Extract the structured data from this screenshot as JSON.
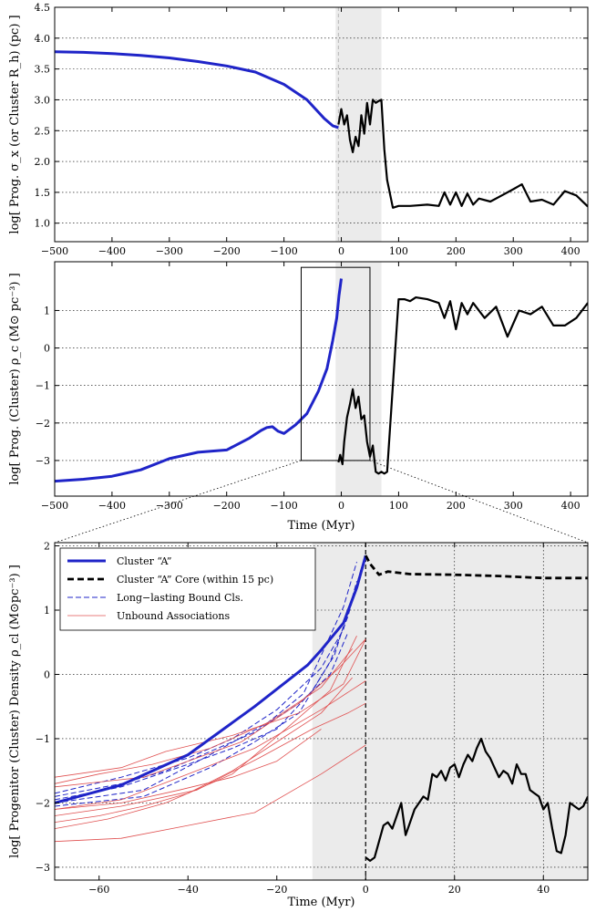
{
  "chart_data": [
    {
      "id": "top",
      "type": "line",
      "ylabel": "log[ Prog. σ_x (or Cluster R_h) (pc) ]",
      "xlabel": "",
      "xlim": [
        -500,
        430
      ],
      "ylim": [
        0.7,
        4.5
      ],
      "xticks": [
        -500,
        -400,
        -300,
        -200,
        -100,
        0,
        100,
        200,
        300,
        400
      ],
      "yticks": [
        1.0,
        1.5,
        2.0,
        2.5,
        3.0,
        3.5,
        4.0,
        4.5
      ],
      "ytick_labels": [
        "1.0",
        "1.5",
        "2.0",
        "2.5",
        "3.0",
        "3.5",
        "4.0",
        "4.5"
      ],
      "grid_y": true,
      "shade": [
        -10,
        70
      ],
      "vline": -5,
      "series": [
        {
          "color": "#1f24c8",
          "style": "solid",
          "width": 3,
          "x": [
            -500,
            -450,
            -400,
            -350,
            -300,
            -250,
            -200,
            -150,
            -100,
            -60,
            -30,
            -15,
            -5
          ],
          "y": [
            3.78,
            3.77,
            3.75,
            3.72,
            3.68,
            3.62,
            3.55,
            3.45,
            3.25,
            3.0,
            2.7,
            2.58,
            2.55
          ]
        },
        {
          "color": "#000000",
          "style": "solid",
          "width": 2.2,
          "x": [
            -5,
            0,
            5,
            10,
            15,
            20,
            25,
            30,
            35,
            40,
            45,
            50,
            55,
            60,
            65,
            70,
            75,
            80,
            90,
            100,
            120,
            150,
            170,
            180,
            190,
            200,
            210,
            220,
            230,
            240,
            260,
            280,
            300,
            315,
            330,
            350,
            370,
            390,
            410,
            430
          ],
          "y": [
            2.6,
            2.85,
            2.6,
            2.75,
            2.35,
            2.15,
            2.4,
            2.25,
            2.75,
            2.45,
            2.95,
            2.6,
            3.0,
            2.95,
            2.98,
            3.0,
            2.2,
            1.7,
            1.25,
            1.28,
            1.28,
            1.3,
            1.28,
            1.5,
            1.3,
            1.5,
            1.28,
            1.48,
            1.3,
            1.4,
            1.35,
            1.45,
            1.55,
            1.63,
            1.35,
            1.38,
            1.3,
            1.52,
            1.45,
            1.27
          ]
        }
      ]
    },
    {
      "id": "middle",
      "type": "line",
      "ylabel": "log[ Prog. (Cluster) ρ_c (M⊙ pc⁻³) ]",
      "xlabel": "Time (Myr)",
      "xlim": [
        -500,
        430
      ],
      "ylim": [
        -3.95,
        2.3
      ],
      "xticks": [
        -500,
        -400,
        -300,
        -200,
        -100,
        0,
        100,
        200,
        300,
        400
      ],
      "yticks": [
        -3,
        -2,
        -1,
        0,
        1
      ],
      "ytick_labels": [
        "-3",
        "-2",
        "-1",
        "0",
        "1"
      ],
      "grid_y": true,
      "shade": [
        -10,
        70
      ],
      "zoom_box": {
        "x": [
          -70,
          50
        ],
        "y": [
          -3.0,
          2.15
        ]
      },
      "series": [
        {
          "color": "#1f24c8",
          "style": "solid",
          "width": 3,
          "x": [
            -500,
            -450,
            -400,
            -350,
            -300,
            -250,
            -200,
            -160,
            -140,
            -130,
            -120,
            -110,
            -100,
            -80,
            -60,
            -40,
            -25,
            -15,
            -8,
            -4,
            0
          ],
          "y": [
            -3.55,
            -3.5,
            -3.42,
            -3.25,
            -2.95,
            -2.78,
            -2.72,
            -2.4,
            -2.2,
            -2.12,
            -2.1,
            -2.22,
            -2.28,
            -2.05,
            -1.75,
            -1.15,
            -0.55,
            0.2,
            0.8,
            1.4,
            1.85
          ]
        },
        {
          "color": "#000000",
          "style": "solid",
          "width": 2.2,
          "x": [
            -5,
            -2,
            2,
            5,
            10,
            15,
            20,
            25,
            30,
            35,
            40,
            45,
            50,
            55,
            60,
            65,
            70,
            75,
            80,
            90,
            100,
            110,
            120,
            130,
            150,
            170,
            180,
            190,
            200,
            210,
            220,
            230,
            250,
            270,
            290,
            310,
            330,
            350,
            370,
            390,
            410,
            430
          ],
          "y": [
            -3.05,
            -2.85,
            -3.1,
            -2.5,
            -1.85,
            -1.5,
            -1.1,
            -1.6,
            -1.3,
            -1.9,
            -1.8,
            -2.5,
            -2.9,
            -2.6,
            -3.3,
            -3.35,
            -3.3,
            -3.35,
            -3.3,
            -1.0,
            1.3,
            1.3,
            1.25,
            1.35,
            1.3,
            1.2,
            0.8,
            1.25,
            0.5,
            1.2,
            0.9,
            1.2,
            0.8,
            1.1,
            0.3,
            1.0,
            0.9,
            1.1,
            0.6,
            0.6,
            0.8,
            1.2
          ]
        }
      ]
    },
    {
      "id": "bottom",
      "type": "line",
      "ylabel": "log[ Progenitor (Cluster) Density ρ_cl (M⊙pc⁻³) ]",
      "xlabel": "Time (Myr)",
      "xlim": [
        -70,
        50
      ],
      "ylim": [
        -3.2,
        2.05
      ],
      "xticks": [
        -60,
        -40,
        -20,
        0,
        20,
        40
      ],
      "yticks": [
        -3,
        -2,
        -1,
        0,
        1,
        2
      ],
      "ytick_labels": [
        "-3",
        "-2",
        "-1",
        "0",
        "1",
        "2"
      ],
      "grid_x": [
        20,
        40
      ],
      "grid_y": true,
      "shade": [
        -12,
        50
      ],
      "vline": 0,
      "legend_position": "top-left",
      "legend": [
        {
          "label": "Cluster “A”",
          "color": "#1f24c8",
          "style": "solid",
          "width": 3
        },
        {
          "label": "Cluster “A” Core (within 15 pc)",
          "color": "#000000",
          "style": "dashed",
          "width": 2.8
        },
        {
          "label": "Long−lasting Bound Cls.",
          "color": "#1f24c8",
          "style": "dashed",
          "width": 1
        },
        {
          "label": "Unbound Associations",
          "color": "#e05050",
          "style": "solid",
          "width": 0.8
        }
      ],
      "series": [
        {
          "name": "Cluster “A”",
          "color": "#1f24c8",
          "style": "solid",
          "width": 3,
          "x": [
            -70,
            -55,
            -40,
            -25,
            -13,
            -10,
            -5,
            -2,
            0
          ],
          "y": [
            -2.0,
            -1.72,
            -1.25,
            -0.5,
            0.15,
            0.38,
            0.8,
            1.35,
            1.85
          ]
        },
        {
          "name": "Cluster “A” Core (within 15 pc)",
          "color": "#000000",
          "style": "dashed",
          "width": 2.8,
          "x": [
            0,
            1,
            3,
            5,
            10,
            20,
            30,
            40,
            50
          ],
          "y": [
            1.85,
            1.72,
            1.55,
            1.6,
            1.56,
            1.55,
            1.53,
            1.5,
            1.5
          ]
        },
        {
          "color": "#000000",
          "style": "solid",
          "width": 2.2,
          "x": [
            0,
            1,
            2,
            3,
            4,
            5,
            6,
            7,
            8,
            9,
            10,
            11,
            12,
            13,
            14,
            15,
            16,
            17,
            18,
            19,
            20,
            21,
            22,
            23,
            24,
            25,
            26,
            27,
            28,
            29,
            30,
            31,
            32,
            33,
            34,
            35,
            36,
            37,
            38,
            39,
            40,
            41,
            42,
            43,
            44,
            45,
            46,
            47,
            48,
            49,
            50
          ],
          "y": [
            -2.85,
            -2.9,
            -2.85,
            -2.6,
            -2.35,
            -2.3,
            -2.4,
            -2.2,
            -2.0,
            -2.5,
            -2.3,
            -2.1,
            -2.0,
            -1.9,
            -1.95,
            -1.55,
            -1.6,
            -1.5,
            -1.65,
            -1.45,
            -1.4,
            -1.6,
            -1.4,
            -1.25,
            -1.35,
            -1.15,
            -1.0,
            -1.2,
            -1.3,
            -1.45,
            -1.6,
            -1.5,
            -1.55,
            -1.7,
            -1.4,
            -1.55,
            -1.55,
            -1.8,
            -1.85,
            -1.9,
            -2.1,
            -2.0,
            -2.4,
            -2.75,
            -2.78,
            -2.5,
            -2.0,
            -2.05,
            -2.1,
            -2.05,
            -1.9
          ]
        },
        {
          "color": "#1f24c8",
          "style": "dashed",
          "width": 1,
          "x": [
            -70,
            -55,
            -40,
            -30,
            -20,
            -10,
            -5,
            -2
          ],
          "y": [
            -1.85,
            -1.6,
            -1.3,
            -1.0,
            -0.55,
            0.1,
            0.7,
            1.45
          ]
        },
        {
          "color": "#1f24c8",
          "style": "dashed",
          "width": 1,
          "x": [
            -70,
            -50,
            -35,
            -25,
            -15,
            -8,
            -4,
            -1
          ],
          "y": [
            -2.05,
            -1.9,
            -1.45,
            -1.05,
            -0.6,
            0.2,
            0.9,
            1.65
          ]
        },
        {
          "color": "#1f24c8",
          "style": "dashed",
          "width": 1,
          "x": [
            -70,
            -55,
            -40,
            -30,
            -20,
            -12,
            -7,
            -3
          ],
          "y": [
            -1.95,
            -1.75,
            -1.4,
            -1.15,
            -0.85,
            -0.25,
            0.3,
            1.2
          ]
        },
        {
          "color": "#1f24c8",
          "style": "dashed",
          "width": 1,
          "x": [
            -70,
            -50,
            -35,
            -22,
            -14,
            -9,
            -5,
            -2
          ],
          "y": [
            -2.0,
            -1.8,
            -1.25,
            -0.75,
            -0.3,
            0.45,
            1.05,
            1.75
          ]
        },
        {
          "color": "#1f24c8",
          "style": "dashed",
          "width": 1,
          "x": [
            -70,
            -55,
            -45,
            -35,
            -25,
            -15,
            -8,
            -4
          ],
          "y": [
            -1.9,
            -1.7,
            -1.5,
            -1.2,
            -0.9,
            -0.45,
            0.0,
            0.65
          ]
        },
        {
          "color": "#e05050",
          "style": "solid",
          "width": 0.8,
          "x": [
            -70,
            -55,
            -45,
            -30,
            -15,
            -5,
            0
          ],
          "y": [
            -1.6,
            -1.45,
            -1.2,
            -0.95,
            -0.6,
            -0.15,
            0.55
          ]
        },
        {
          "color": "#e05050",
          "style": "solid",
          "width": 0.8,
          "x": [
            -70,
            -50,
            -40,
            -28,
            -15,
            -6,
            0
          ],
          "y": [
            -1.75,
            -1.6,
            -1.35,
            -1.05,
            -0.45,
            0.1,
            0.55
          ]
        },
        {
          "color": "#e05050",
          "style": "solid",
          "width": 0.8,
          "x": [
            -70,
            -55,
            -40,
            -25,
            -10,
            0
          ],
          "y": [
            -2.1,
            -1.95,
            -1.55,
            -1.15,
            -0.55,
            -0.1
          ]
        },
        {
          "color": "#e05050",
          "style": "solid",
          "width": 0.8,
          "x": [
            -70,
            -55,
            -38,
            -24,
            -12,
            -4,
            0
          ],
          "y": [
            -2.2,
            -2.05,
            -1.8,
            -1.3,
            -0.85,
            -0.6,
            -0.45
          ]
        },
        {
          "color": "#e05050",
          "style": "solid",
          "width": 0.8,
          "x": [
            -70,
            -55,
            -40,
            -25,
            -10,
            0
          ],
          "y": [
            -2.6,
            -2.55,
            -2.35,
            -2.15,
            -1.55,
            -1.1
          ]
        },
        {
          "color": "#e05050",
          "style": "solid",
          "width": 0.8,
          "x": [
            -70,
            -58,
            -45,
            -30,
            -18,
            -8,
            -2
          ],
          "y": [
            -2.4,
            -2.25,
            -2.0,
            -1.55,
            -0.85,
            -0.25,
            0.6
          ]
        },
        {
          "color": "#e05050",
          "style": "solid",
          "width": 0.8,
          "x": [
            -70,
            -60,
            -48,
            -35,
            -22,
            -10,
            -3
          ],
          "y": [
            -1.7,
            -1.55,
            -1.4,
            -1.15,
            -0.75,
            -0.2,
            0.4
          ]
        },
        {
          "color": "#e05050",
          "style": "solid",
          "width": 0.8,
          "x": [
            -70,
            -60,
            -50,
            -40,
            -30,
            -20,
            -10,
            -3
          ],
          "y": [
            -2.3,
            -2.2,
            -2.05,
            -1.85,
            -1.5,
            -1.05,
            -0.6,
            -0.05
          ]
        },
        {
          "color": "#e05050",
          "style": "solid",
          "width": 0.8,
          "x": [
            -70,
            -55,
            -42,
            -30,
            -20,
            -10
          ],
          "y": [
            -2.1,
            -2.0,
            -1.8,
            -1.6,
            -1.35,
            -0.85
          ]
        }
      ]
    }
  ]
}
